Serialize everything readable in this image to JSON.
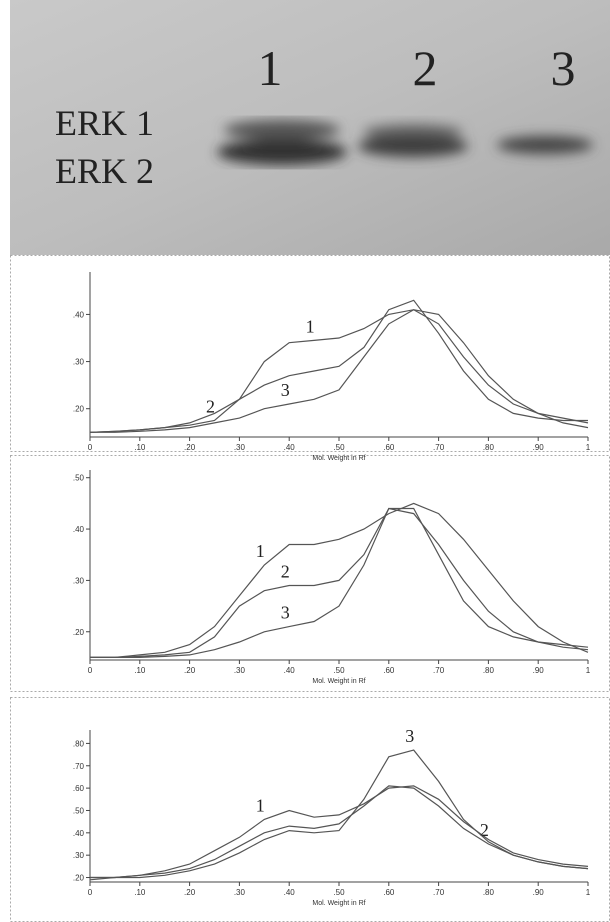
{
  "blot": {
    "lanes": [
      "1",
      "2",
      "3"
    ],
    "bands": [
      "ERK 1",
      "ERK 2"
    ]
  },
  "chart_data": [
    {
      "type": "line",
      "x_label": "Mol. Weight in Rf",
      "x": [
        0,
        0.05,
        0.1,
        0.15,
        0.2,
        0.25,
        0.3,
        0.35,
        0.4,
        0.45,
        0.5,
        0.55,
        0.6,
        0.65,
        0.7,
        0.75,
        0.8,
        0.85,
        0.9,
        0.95,
        1
      ],
      "xlim": [
        0,
        1
      ],
      "xticks": [
        0,
        {
          "value": 0.1,
          "label": ".10"
        },
        {
          "value": 0.2,
          "label": ".20"
        },
        {
          "value": 0.3,
          "label": ".30"
        },
        {
          "value": 0.4,
          "label": ".40"
        },
        {
          "value": 0.5,
          "label": ".50"
        },
        {
          "value": 0.6,
          "label": ".60"
        },
        {
          "value": 0.7,
          "label": ".70"
        },
        {
          "value": 0.8,
          "label": ".80"
        },
        {
          "value": 0.9,
          "label": ".90"
        },
        1
      ],
      "ylim": [
        0.14,
        0.49
      ],
      "yticks": [
        {
          "value": 0.2,
          "label": ".20"
        },
        {
          "value": 0.3,
          "label": ".30"
        },
        {
          "value": 0.4,
          "label": ".40"
        }
      ],
      "series": [
        {
          "name": "1",
          "color": "#555",
          "values": [
            0.15,
            0.152,
            0.155,
            0.16,
            0.17,
            0.19,
            0.22,
            0.3,
            0.34,
            0.345,
            0.35,
            0.37,
            0.4,
            0.41,
            0.38,
            0.31,
            0.25,
            0.21,
            0.19,
            0.18,
            0.17
          ]
        },
        {
          "name": "2",
          "color": "#555",
          "values": [
            0.15,
            0.152,
            0.155,
            0.16,
            0.165,
            0.175,
            0.22,
            0.25,
            0.27,
            0.28,
            0.29,
            0.33,
            0.41,
            0.43,
            0.36,
            0.28,
            0.22,
            0.19,
            0.18,
            0.175,
            0.175
          ]
        },
        {
          "name": "3",
          "color": "#555",
          "values": [
            0.15,
            0.15,
            0.152,
            0.155,
            0.16,
            0.17,
            0.18,
            0.2,
            0.21,
            0.22,
            0.24,
            0.31,
            0.38,
            0.41,
            0.4,
            0.34,
            0.27,
            0.22,
            0.19,
            0.17,
            0.16
          ]
        }
      ]
    },
    {
      "type": "line",
      "x_label": "Mol. Weight in Rf",
      "x": [
        0,
        0.05,
        0.1,
        0.15,
        0.2,
        0.25,
        0.3,
        0.35,
        0.4,
        0.45,
        0.5,
        0.55,
        0.6,
        0.65,
        0.7,
        0.75,
        0.8,
        0.85,
        0.9,
        0.95,
        1
      ],
      "xlim": [
        0,
        1
      ],
      "xticks": [
        0,
        {
          "value": 0.1,
          "label": ".10"
        },
        {
          "value": 0.2,
          "label": ".20"
        },
        {
          "value": 0.3,
          "label": ".30"
        },
        {
          "value": 0.4,
          "label": ".40"
        },
        {
          "value": 0.5,
          "label": ".50"
        },
        {
          "value": 0.6,
          "label": ".60"
        },
        {
          "value": 0.7,
          "label": ".70"
        },
        {
          "value": 0.8,
          "label": ".80"
        },
        {
          "value": 0.9,
          "label": ".90"
        },
        1
      ],
      "ylim": [
        0.145,
        0.515
      ],
      "yticks": [
        {
          "value": 0.2,
          "label": ".20"
        },
        {
          "value": 0.3,
          "label": ".30"
        },
        {
          "value": 0.4,
          "label": ".40"
        },
        {
          "value": 0.5,
          "label": ".50"
        }
      ],
      "series": [
        {
          "name": "1",
          "color": "#555",
          "values": [
            0.15,
            0.15,
            0.155,
            0.16,
            0.175,
            0.21,
            0.27,
            0.33,
            0.37,
            0.37,
            0.38,
            0.4,
            0.43,
            0.45,
            0.43,
            0.38,
            0.32,
            0.26,
            0.21,
            0.18,
            0.16
          ]
        },
        {
          "name": "2",
          "color": "#555",
          "values": [
            0.15,
            0.15,
            0.152,
            0.155,
            0.16,
            0.19,
            0.25,
            0.28,
            0.29,
            0.29,
            0.3,
            0.35,
            0.44,
            0.44,
            0.35,
            0.26,
            0.21,
            0.19,
            0.18,
            0.175,
            0.17
          ]
        },
        {
          "name": "3",
          "color": "#555",
          "values": [
            0.15,
            0.15,
            0.15,
            0.152,
            0.155,
            0.165,
            0.18,
            0.2,
            0.21,
            0.22,
            0.25,
            0.33,
            0.44,
            0.43,
            0.37,
            0.3,
            0.24,
            0.2,
            0.18,
            0.17,
            0.165
          ]
        }
      ]
    },
    {
      "type": "line",
      "x_label": "Mol. Weight in Rf",
      "x": [
        0,
        0.05,
        0.1,
        0.15,
        0.2,
        0.25,
        0.3,
        0.35,
        0.4,
        0.45,
        0.5,
        0.55,
        0.6,
        0.65,
        0.7,
        0.75,
        0.8,
        0.85,
        0.9,
        0.95,
        1
      ],
      "xlim": [
        0,
        1
      ],
      "xticks": [
        0,
        {
          "value": 0.1,
          "label": ".10"
        },
        {
          "value": 0.2,
          "label": ".20"
        },
        {
          "value": 0.3,
          "label": ".30"
        },
        {
          "value": 0.4,
          "label": ".40"
        },
        {
          "value": 0.5,
          "label": ".50"
        },
        {
          "value": 0.6,
          "label": ".60"
        },
        {
          "value": 0.7,
          "label": ".70"
        },
        {
          "value": 0.8,
          "label": ".80"
        },
        {
          "value": 0.9,
          "label": ".90"
        },
        1
      ],
      "ylim": [
        0.18,
        0.86
      ],
      "yticks": [
        {
          "value": 0.2,
          "label": ".20"
        },
        {
          "value": 0.3,
          "label": ".30"
        },
        {
          "value": 0.4,
          "label": ".40"
        },
        {
          "value": 0.5,
          "label": ".50"
        },
        {
          "value": 0.6,
          "label": ".60"
        },
        {
          "value": 0.7,
          "label": ".70"
        },
        {
          "value": 0.8,
          "label": ".80"
        }
      ],
      "series": [
        {
          "name": "1",
          "color": "#555",
          "values": [
            0.19,
            0.2,
            0.21,
            0.23,
            0.26,
            0.32,
            0.38,
            0.46,
            0.5,
            0.47,
            0.48,
            0.53,
            0.6,
            0.61,
            0.55,
            0.45,
            0.37,
            0.31,
            0.28,
            0.26,
            0.25
          ]
        },
        {
          "name": "2",
          "color": "#555",
          "values": [
            0.2,
            0.2,
            0.21,
            0.22,
            0.24,
            0.28,
            0.34,
            0.4,
            0.43,
            0.42,
            0.44,
            0.52,
            0.61,
            0.6,
            0.52,
            0.42,
            0.35,
            0.3,
            0.27,
            0.25,
            0.24
          ]
        },
        {
          "name": "3",
          "color": "#555",
          "values": [
            0.2,
            0.2,
            0.2,
            0.21,
            0.23,
            0.26,
            0.31,
            0.37,
            0.41,
            0.4,
            0.41,
            0.55,
            0.74,
            0.77,
            0.63,
            0.46,
            0.36,
            0.3,
            0.27,
            0.25,
            0.24
          ]
        }
      ]
    }
  ]
}
